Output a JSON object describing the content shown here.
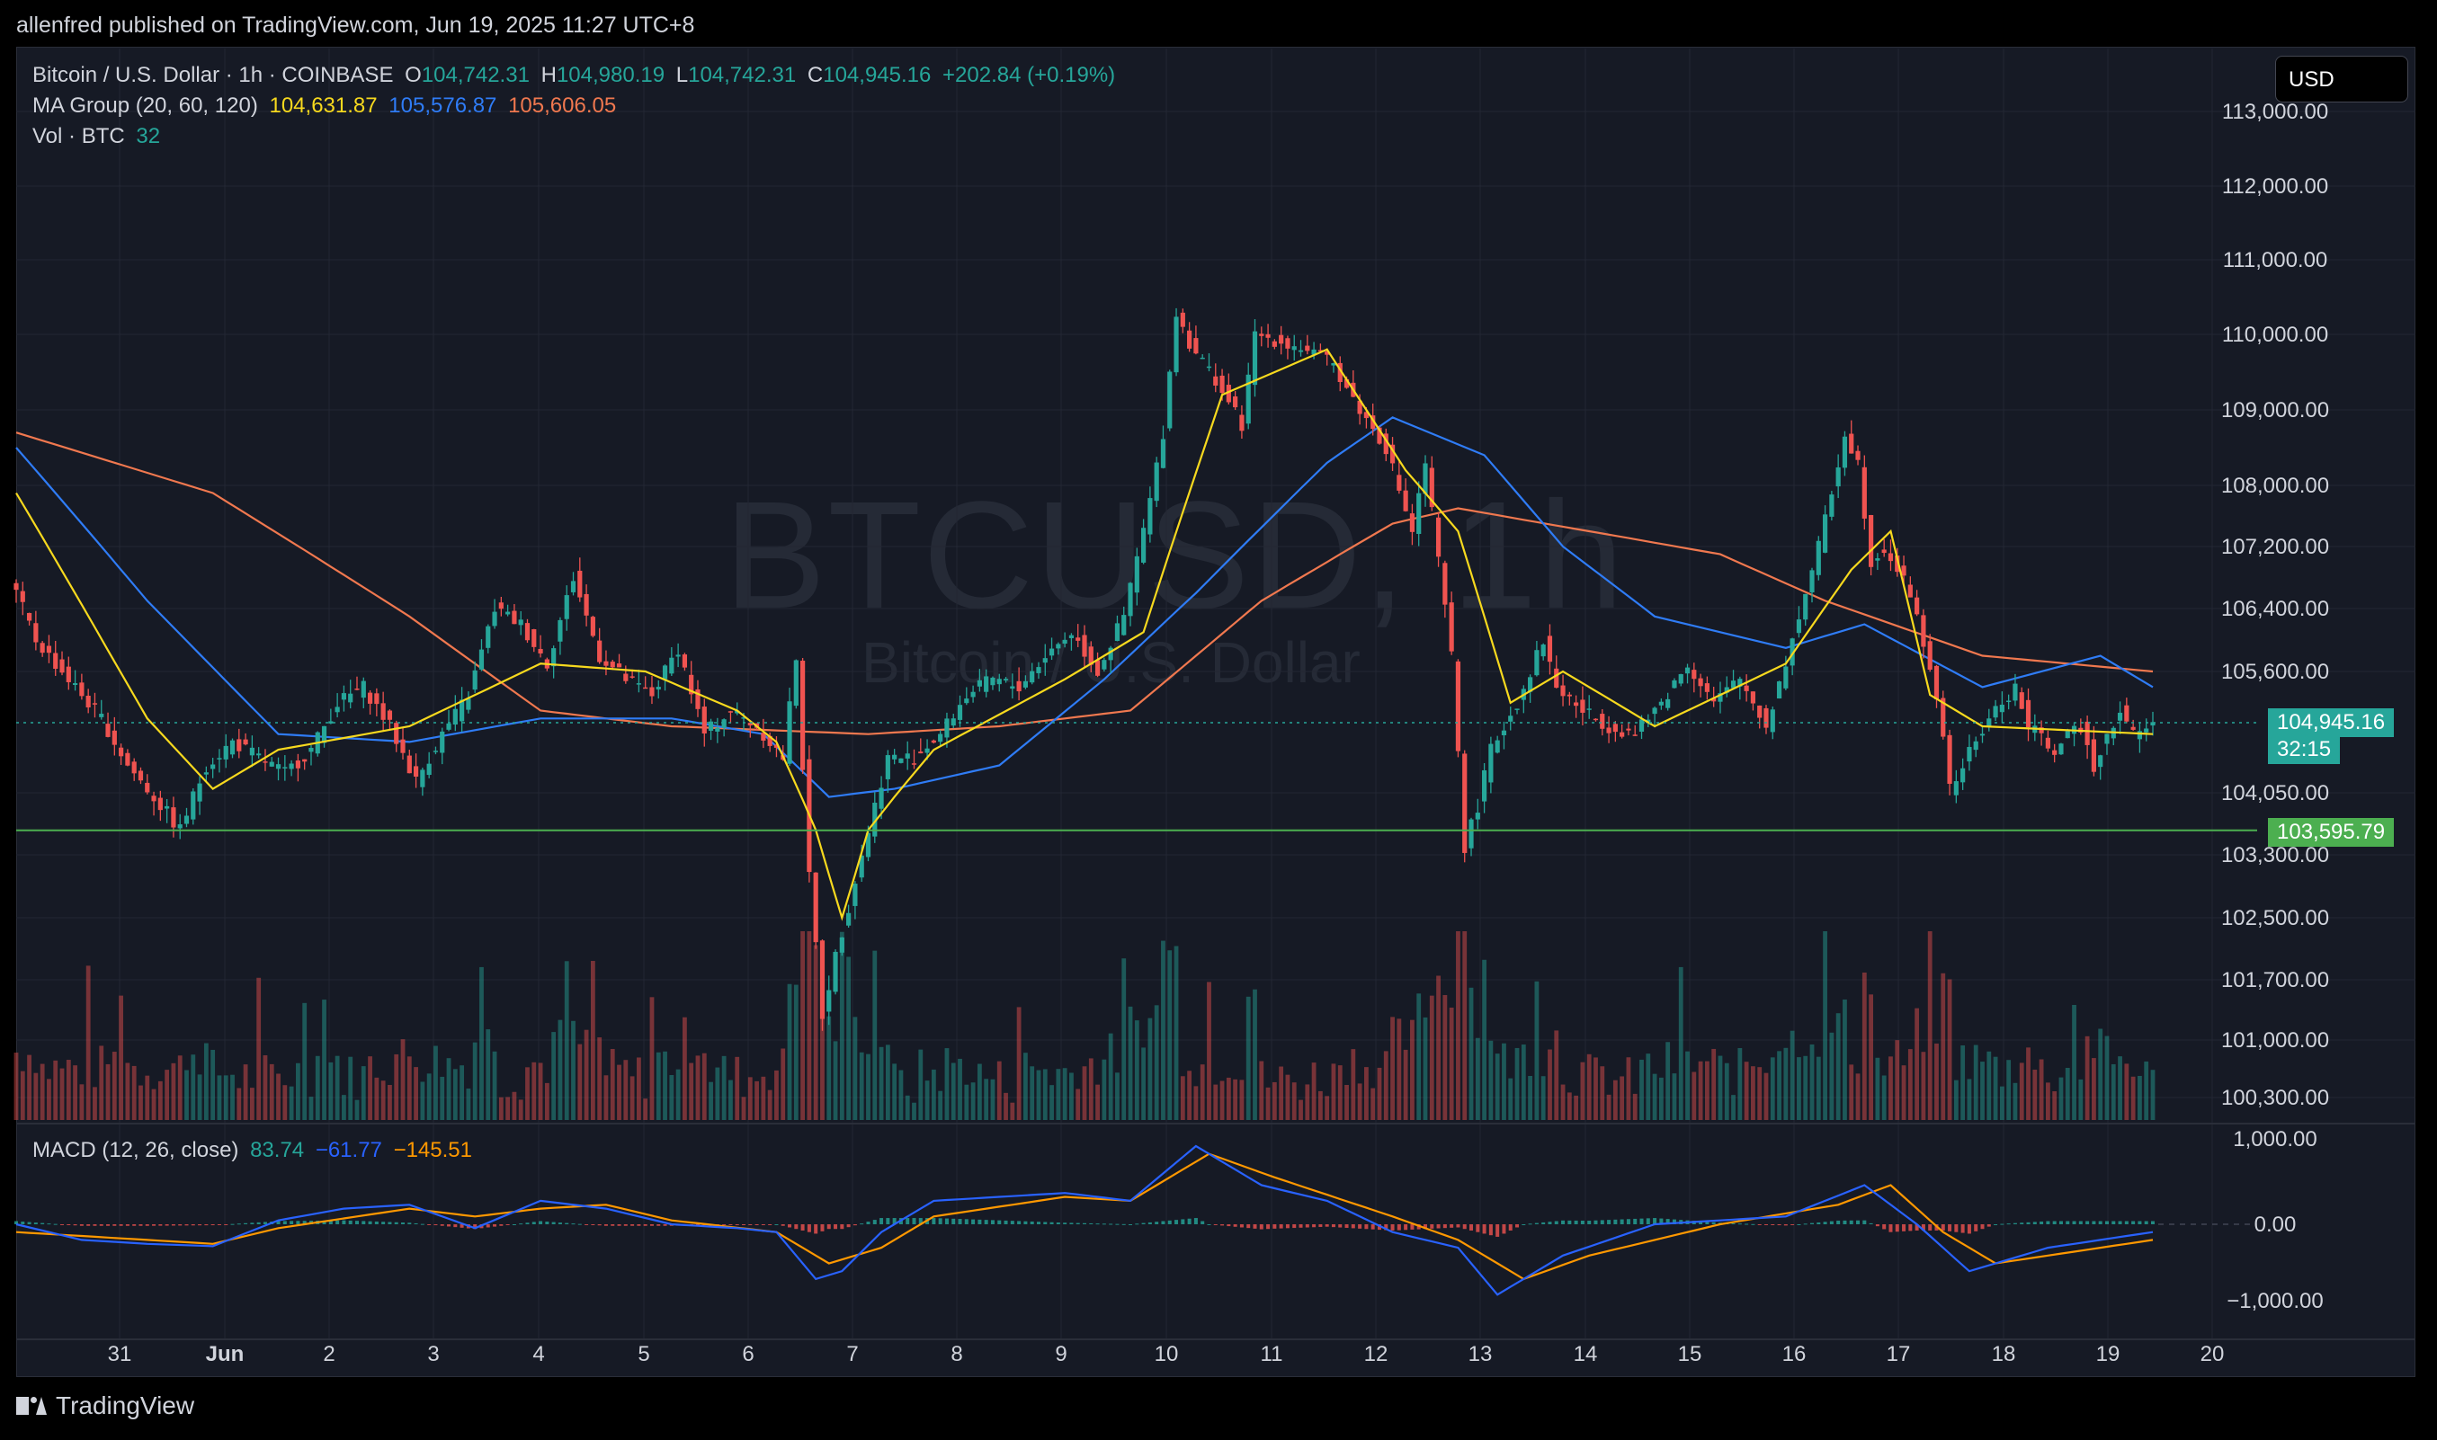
{
  "header": {
    "published_text": "allenfred published on TradingView.com, Jun 19, 2025 11:27 UTC+8"
  },
  "legend": {
    "symbol": "Bitcoin / U.S. Dollar · 1h · COINBASE",
    "o_label": "O",
    "o_value": "104,742.31",
    "h_label": "H",
    "h_value": "104,980.19",
    "l_label": "L",
    "l_value": "104,742.31",
    "c_label": "C",
    "c_value": "104,945.16",
    "change": "+202.84 (+0.19%)",
    "ma_label": "MA Group (20, 60, 120)",
    "ma20_value": "104,631.87",
    "ma60_value": "105,576.87",
    "ma120_value": "105,606.05",
    "vol_label": "Vol · BTC",
    "vol_value": "32",
    "macd_label": "MACD (12, 26, close)",
    "macd_hist": "83.74",
    "macd_line": "−61.77",
    "macd_signal": "−145.51"
  },
  "currency_button": "USD",
  "watermark": {
    "symbol": "BTCUSD, 1h",
    "name": "Bitcoin / U.S. Dollar"
  },
  "price_labels": {
    "last_price": "104,945.16",
    "countdown": "32:15",
    "horizontal_line": "103,595.79"
  },
  "footer": {
    "brand": "TradingView"
  },
  "colors": {
    "up": "#26a69a",
    "down": "#ef5350",
    "ma20": "#f7d91e",
    "ma60": "#2f7cf6",
    "ma120": "#f0784f",
    "hline": "#4caf50",
    "macd_line": "#2962ff",
    "macd_signal": "#ff9800"
  },
  "chart_data": {
    "type": "candlestick",
    "title": "Bitcoin / U.S. Dollar · 1h · COINBASE",
    "y_ticks": [
      "113,000.00",
      "112,000.00",
      "111,000.00",
      "110,000.00",
      "109,000.00",
      "108,000.00",
      "107,200.00",
      "106,400.00",
      "105,600.00",
      "104,050.00",
      "103,300.00",
      "102,500.00",
      "101,700.00",
      "101,000.00",
      "100,300.00"
    ],
    "y_tick_values": [
      113000,
      112000,
      111000,
      110000,
      109000,
      108000,
      107200,
      106400,
      105600,
      104050,
      103300,
      102500,
      101700,
      101000,
      100300
    ],
    "x_ticks": [
      "31",
      "Jun",
      "2",
      "3",
      "4",
      "5",
      "6",
      "7",
      "8",
      "9",
      "10",
      "11",
      "12",
      "13",
      "14",
      "15",
      "16",
      "17",
      "18",
      "19",
      "20"
    ],
    "price_path": [
      [
        0,
        106800
      ],
      [
        4,
        106000
      ],
      [
        10,
        105400
      ],
      [
        14,
        105000
      ],
      [
        18,
        104400
      ],
      [
        22,
        104000
      ],
      [
        26,
        103600
      ],
      [
        30,
        104400
      ],
      [
        34,
        104700
      ],
      [
        38,
        104500
      ],
      [
        42,
        104300
      ],
      [
        46,
        104600
      ],
      [
        50,
        105200
      ],
      [
        54,
        105400
      ],
      [
        58,
        104900
      ],
      [
        62,
        104200
      ],
      [
        66,
        104800
      ],
      [
        70,
        105300
      ],
      [
        74,
        106400
      ],
      [
        78,
        106200
      ],
      [
        82,
        105700
      ],
      [
        86,
        106800
      ],
      [
        90,
        105800
      ],
      [
        94,
        105500
      ],
      [
        98,
        105300
      ],
      [
        102,
        105900
      ],
      [
        106,
        104800
      ],
      [
        110,
        105100
      ],
      [
        114,
        104900
      ],
      [
        118,
        104500
      ],
      [
        120,
        105800
      ],
      [
        122,
        103000
      ],
      [
        124,
        101300
      ],
      [
        126,
        102000
      ],
      [
        130,
        103300
      ],
      [
        134,
        104500
      ],
      [
        138,
        104500
      ],
      [
        142,
        104800
      ],
      [
        146,
        105300
      ],
      [
        150,
        105500
      ],
      [
        154,
        105400
      ],
      [
        158,
        105800
      ],
      [
        162,
        106100
      ],
      [
        166,
        105600
      ],
      [
        170,
        106300
      ],
      [
        174,
        107800
      ],
      [
        176,
        108700
      ],
      [
        178,
        110300
      ],
      [
        180,
        109900
      ],
      [
        184,
        109400
      ],
      [
        188,
        108800
      ],
      [
        190,
        110000
      ],
      [
        194,
        109900
      ],
      [
        198,
        109800
      ],
      [
        202,
        109600
      ],
      [
        206,
        109000
      ],
      [
        210,
        108500
      ],
      [
        214,
        107400
      ],
      [
        216,
        108300
      ],
      [
        218,
        107000
      ],
      [
        220,
        105800
      ],
      [
        222,
        103400
      ],
      [
        224,
        103900
      ],
      [
        226,
        104600
      ],
      [
        230,
        105200
      ],
      [
        234,
        106000
      ],
      [
        236,
        105400
      ],
      [
        240,
        105100
      ],
      [
        244,
        104900
      ],
      [
        248,
        104800
      ],
      [
        252,
        105200
      ],
      [
        256,
        105700
      ],
      [
        260,
        105200
      ],
      [
        264,
        105500
      ],
      [
        268,
        104900
      ],
      [
        272,
        106000
      ],
      [
        274,
        106600
      ],
      [
        276,
        107200
      ],
      [
        278,
        107900
      ],
      [
        280,
        108700
      ],
      [
        282,
        108300
      ],
      [
        284,
        107000
      ],
      [
        286,
        107200
      ],
      [
        290,
        106600
      ],
      [
        294,
        105300
      ],
      [
        296,
        104100
      ],
      [
        298,
        104400
      ],
      [
        302,
        105000
      ],
      [
        306,
        105400
      ],
      [
        308,
        104900
      ],
      [
        312,
        104600
      ],
      [
        316,
        104900
      ],
      [
        318,
        104400
      ],
      [
        320,
        104800
      ],
      [
        322,
        105100
      ],
      [
        324,
        104800
      ],
      [
        326,
        104900
      ]
    ],
    "ma20_path": [
      [
        0,
        107900
      ],
      [
        20,
        105000
      ],
      [
        30,
        104100
      ],
      [
        40,
        104600
      ],
      [
        60,
        104900
      ],
      [
        80,
        105700
      ],
      [
        96,
        105600
      ],
      [
        110,
        105100
      ],
      [
        116,
        104700
      ],
      [
        122,
        103600
      ],
      [
        126,
        102500
      ],
      [
        130,
        103600
      ],
      [
        140,
        104600
      ],
      [
        160,
        105500
      ],
      [
        172,
        106100
      ],
      [
        184,
        109200
      ],
      [
        200,
        109800
      ],
      [
        212,
        108200
      ],
      [
        220,
        107400
      ],
      [
        228,
        105200
      ],
      [
        236,
        105600
      ],
      [
        250,
        104900
      ],
      [
        270,
        105700
      ],
      [
        280,
        106900
      ],
      [
        286,
        107400
      ],
      [
        292,
        105300
      ],
      [
        300,
        104900
      ],
      [
        326,
        104800
      ]
    ],
    "ma60_path": [
      [
        0,
        108500
      ],
      [
        20,
        106500
      ],
      [
        40,
        104800
      ],
      [
        60,
        104700
      ],
      [
        80,
        105000
      ],
      [
        100,
        105000
      ],
      [
        114,
        104800
      ],
      [
        124,
        104000
      ],
      [
        134,
        104100
      ],
      [
        150,
        104400
      ],
      [
        166,
        105500
      ],
      [
        180,
        106600
      ],
      [
        200,
        108300
      ],
      [
        210,
        108900
      ],
      [
        224,
        108400
      ],
      [
        236,
        107200
      ],
      [
        250,
        106300
      ],
      [
        270,
        105900
      ],
      [
        282,
        106200
      ],
      [
        300,
        105400
      ],
      [
        318,
        105800
      ],
      [
        326,
        105400
      ]
    ],
    "ma120_path": [
      [
        0,
        108700
      ],
      [
        30,
        107900
      ],
      [
        60,
        106300
      ],
      [
        80,
        105100
      ],
      [
        100,
        104900
      ],
      [
        130,
        104800
      ],
      [
        150,
        104900
      ],
      [
        170,
        105100
      ],
      [
        190,
        106500
      ],
      [
        210,
        107500
      ],
      [
        220,
        107700
      ],
      [
        240,
        107400
      ],
      [
        260,
        107100
      ],
      [
        276,
        106500
      ],
      [
        300,
        105800
      ],
      [
        326,
        105600
      ]
    ],
    "macd_path": [
      [
        0,
        0
      ],
      [
        10,
        -200
      ],
      [
        20,
        -250
      ],
      [
        30,
        -280
      ],
      [
        40,
        50
      ],
      [
        50,
        200
      ],
      [
        60,
        250
      ],
      [
        70,
        -50
      ],
      [
        80,
        300
      ],
      [
        90,
        200
      ],
      [
        100,
        0
      ],
      [
        110,
        -50
      ],
      [
        116,
        -100
      ],
      [
        122,
        -700
      ],
      [
        126,
        -600
      ],
      [
        132,
        -100
      ],
      [
        140,
        300
      ],
      [
        160,
        400
      ],
      [
        170,
        300
      ],
      [
        180,
        1000
      ],
      [
        190,
        500
      ],
      [
        200,
        300
      ],
      [
        210,
        -100
      ],
      [
        220,
        -300
      ],
      [
        226,
        -900
      ],
      [
        236,
        -400
      ],
      [
        250,
        0
      ],
      [
        270,
        100
      ],
      [
        282,
        500
      ],
      [
        290,
        0
      ],
      [
        298,
        -600
      ],
      [
        310,
        -300
      ],
      [
        326,
        -100
      ]
    ],
    "signal_path": [
      [
        0,
        -100
      ],
      [
        20,
        -200
      ],
      [
        30,
        -250
      ],
      [
        40,
        -50
      ],
      [
        60,
        200
      ],
      [
        70,
        100
      ],
      [
        80,
        200
      ],
      [
        90,
        250
      ],
      [
        100,
        50
      ],
      [
        116,
        -100
      ],
      [
        124,
        -500
      ],
      [
        132,
        -300
      ],
      [
        140,
        100
      ],
      [
        160,
        350
      ],
      [
        170,
        300
      ],
      [
        182,
        900
      ],
      [
        192,
        600
      ],
      [
        210,
        100
      ],
      [
        220,
        -200
      ],
      [
        230,
        -700
      ],
      [
        240,
        -400
      ],
      [
        260,
        0
      ],
      [
        278,
        250
      ],
      [
        286,
        500
      ],
      [
        294,
        -100
      ],
      [
        302,
        -500
      ],
      [
        326,
        -200
      ]
    ],
    "horizontal_line_value": 103595.79,
    "last_price_value": 104945.16,
    "ylim": [
      100000,
      113000
    ]
  }
}
